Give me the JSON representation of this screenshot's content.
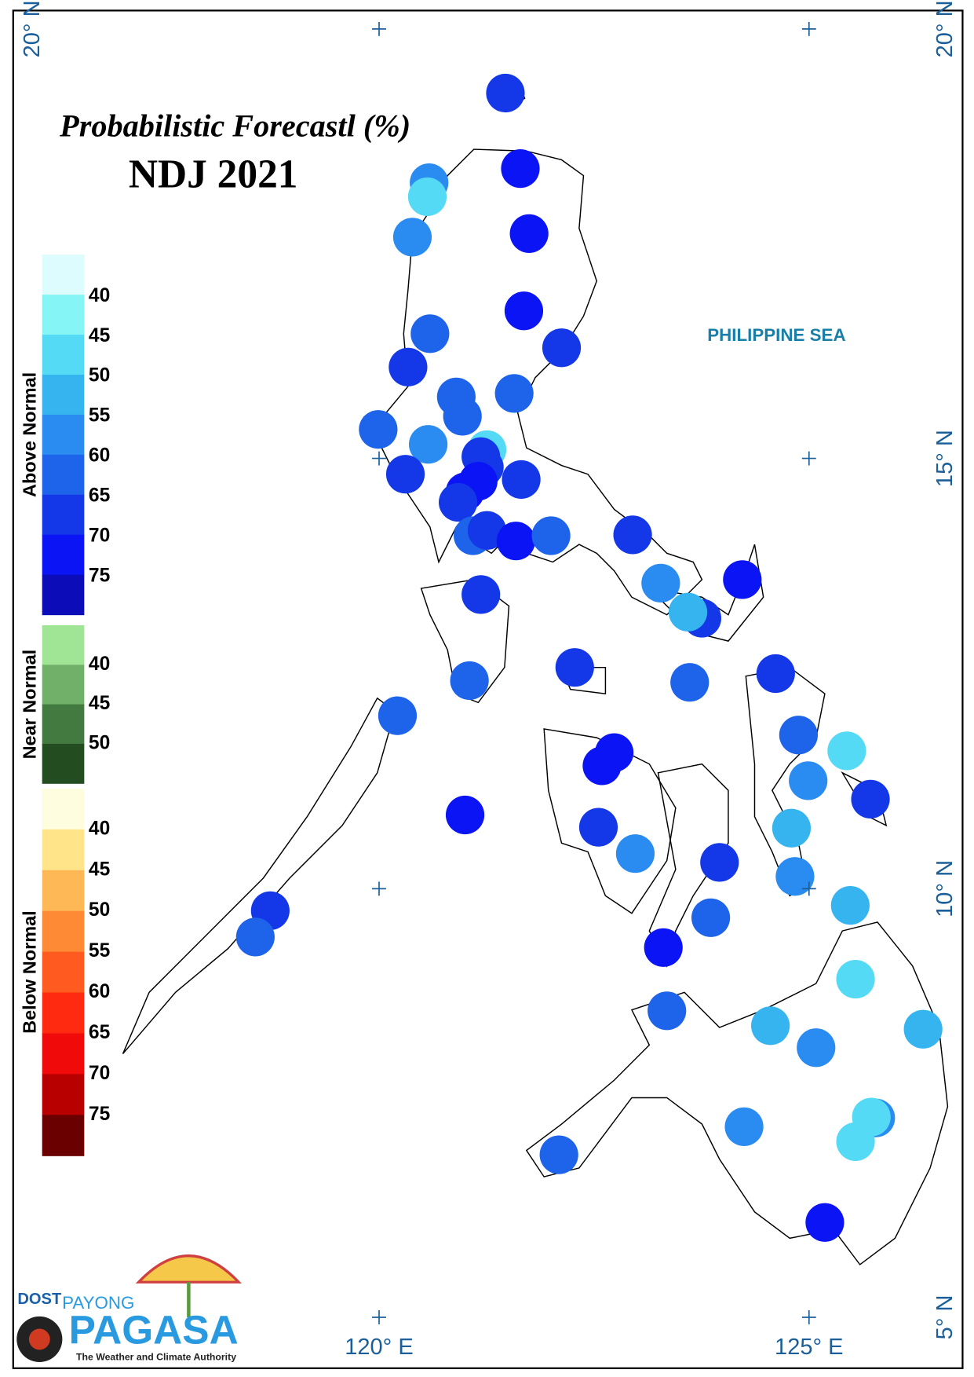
{
  "title": "Probabilistic Forecastl (%)",
  "subtitle": "NDJ 2021",
  "legend": [
    {
      "name": "Above Normal",
      "labels": [
        40,
        45,
        50,
        55,
        60,
        65,
        70,
        75
      ],
      "colors": [
        "#dcfcfd",
        "#86f5f5",
        "#55daf5",
        "#35b4ef",
        "#2a8cf0",
        "#1d64ea",
        "#1438e8",
        "#0a14f5",
        "#0c0cb8"
      ]
    },
    {
      "name": "Near Normal",
      "labels": [
        40,
        45,
        50
      ],
      "colors": [
        "#a0e496",
        "#70b068",
        "#427a40",
        "#234d20"
      ]
    },
    {
      "name": "Below Normal",
      "labels": [
        40,
        45,
        50,
        55,
        60,
        65,
        70,
        75
      ],
      "colors": [
        "#fffde0",
        "#ffe48a",
        "#ffb855",
        "#ff8a35",
        "#ff5a20",
        "#ff2a10",
        "#f00a0a",
        "#b80000",
        "#6a0000"
      ]
    }
  ],
  "latitudes": [
    "20° N",
    "15° N",
    "10° N",
    "5° N"
  ],
  "longitudes": [
    "120° E",
    "125° E"
  ],
  "sea_label": "PHILIPPINE SEA",
  "logo": {
    "agency": "DOST",
    "brand_top": "PAYONG",
    "brand": "PAGASA",
    "tagline": "The Weather and Climate Authority"
  }
}
